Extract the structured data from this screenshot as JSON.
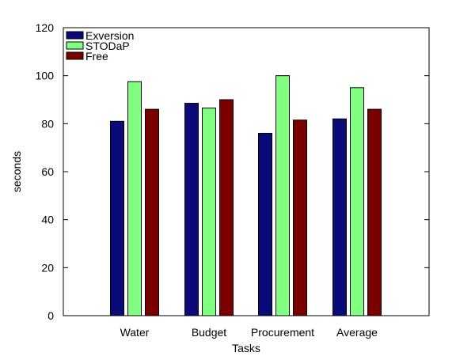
{
  "chart_data": {
    "type": "bar",
    "title": "",
    "xlabel": "Tasks",
    "ylabel": "seconds",
    "ylim": [
      0,
      120
    ],
    "yticks": [
      0,
      20,
      40,
      60,
      80,
      100,
      120
    ],
    "categories": [
      "Water",
      "Budget",
      "Procurement",
      "Average"
    ],
    "series": [
      {
        "name": "Exversion",
        "color": "#0a0a78",
        "values": [
          81,
          88.5,
          76,
          82
        ]
      },
      {
        "name": "STODaP",
        "color": "#80ff80",
        "values": [
          97.5,
          86.5,
          100,
          95
        ]
      },
      {
        "name": "Free",
        "color": "#7a0000",
        "values": [
          86,
          90,
          81.5,
          86
        ]
      }
    ],
    "grid": false,
    "legend_position": "top-left"
  }
}
